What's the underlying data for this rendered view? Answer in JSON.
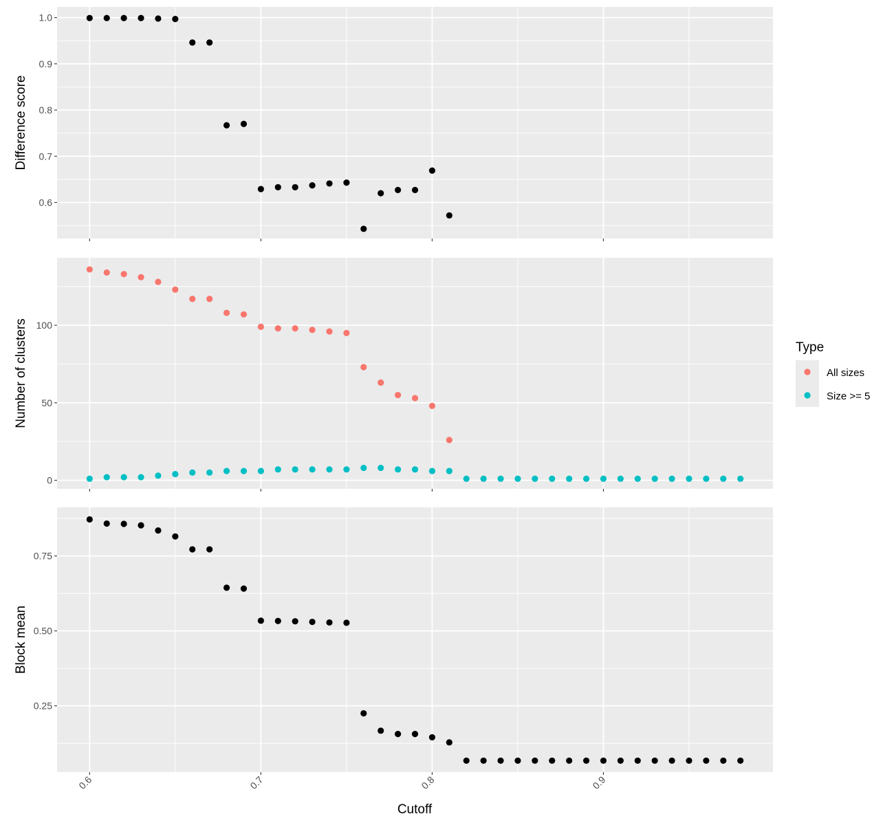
{
  "chart_data": {
    "type": "scatter",
    "xlabel": "Cutoff",
    "xlim": [
      0.581,
      0.999
    ],
    "x_ticks": [
      0.6,
      0.7,
      0.8,
      0.9
    ],
    "x_tick_labels": [
      "0.6",
      "0.7",
      "0.8",
      "0.9"
    ],
    "grid": true,
    "legend": {
      "title": "Type",
      "position": "right",
      "entries": [
        {
          "label": "All sizes",
          "color": "#F8766D"
        },
        {
          "label": "Size >= 5",
          "color": "#00BFC4"
        }
      ]
    },
    "panels": [
      {
        "id": "difference",
        "ylabel": "Difference score",
        "ylim": [
          0.5219,
          1.0232
        ],
        "y_ticks": [
          0.6,
          0.7,
          0.8,
          0.9,
          1.0
        ],
        "y_tick_labels": [
          "0.6",
          "0.7",
          "0.8",
          "0.9",
          "1.0"
        ],
        "series": [
          {
            "color": "#000000",
            "x": [
              0.6,
              0.61,
              0.62,
              0.63,
              0.64,
              0.65,
              0.66,
              0.67,
              0.68,
              0.69,
              0.7,
              0.71,
              0.72,
              0.73,
              0.74,
              0.75,
              0.76,
              0.77,
              0.78,
              0.79,
              0.8,
              0.81
            ],
            "y": [
              0.999,
              0.999,
              0.999,
              0.999,
              0.998,
              0.997,
              0.946,
              0.946,
              0.767,
              0.77,
              0.629,
              0.633,
              0.633,
              0.637,
              0.641,
              0.643,
              0.543,
              0.62,
              0.627,
              0.627,
              0.669,
              0.572
            ]
          }
        ]
      },
      {
        "id": "clusters",
        "ylabel": "Number of clusters",
        "ylim": [
          -5.5,
          143.5
        ],
        "y_ticks": [
          0,
          50,
          100
        ],
        "y_tick_labels": [
          "0",
          "50",
          "100"
        ],
        "series": [
          {
            "name": "All sizes",
            "color": "#F8766D",
            "x": [
              0.6,
              0.61,
              0.62,
              0.63,
              0.64,
              0.65,
              0.66,
              0.67,
              0.68,
              0.69,
              0.7,
              0.71,
              0.72,
              0.73,
              0.74,
              0.75,
              0.76,
              0.77,
              0.78,
              0.79,
              0.8,
              0.81
            ],
            "y": [
              136,
              134,
              133,
              131,
              128,
              123,
              117,
              117,
              108,
              107,
              99,
              98,
              98,
              97,
              96,
              95,
              73,
              63,
              55,
              53,
              48,
              26
            ]
          },
          {
            "name": "Size >= 5",
            "color": "#00BFC4",
            "x": [
              0.6,
              0.61,
              0.62,
              0.63,
              0.64,
              0.65,
              0.66,
              0.67,
              0.68,
              0.69,
              0.7,
              0.71,
              0.72,
              0.73,
              0.74,
              0.75,
              0.76,
              0.77,
              0.78,
              0.79,
              0.8,
              0.81,
              0.82,
              0.83,
              0.84,
              0.85,
              0.86,
              0.87,
              0.88,
              0.89,
              0.9,
              0.91,
              0.92,
              0.93,
              0.94,
              0.95,
              0.96,
              0.97,
              0.98
            ],
            "y": [
              1,
              2,
              2,
              2,
              3,
              4,
              5,
              5,
              6,
              6,
              6,
              7,
              7,
              7,
              7,
              7,
              8,
              8,
              7,
              7,
              6,
              6,
              1,
              1,
              1,
              1,
              1,
              1,
              1,
              1,
              1,
              1,
              1,
              1,
              1,
              1,
              1,
              1,
              1
            ]
          }
        ]
      },
      {
        "id": "block",
        "ylabel": "Block mean",
        "ylim": [
          0.029,
          0.912
        ],
        "y_ticks": [
          0.25,
          0.5,
          0.75
        ],
        "y_tick_labels": [
          "0.25",
          "0.50",
          "0.75"
        ],
        "series": [
          {
            "color": "#000000",
            "x": [
              0.6,
              0.61,
              0.62,
              0.63,
              0.64,
              0.65,
              0.66,
              0.67,
              0.68,
              0.69,
              0.7,
              0.71,
              0.72,
              0.73,
              0.74,
              0.75,
              0.76,
              0.77,
              0.78,
              0.79,
              0.8,
              0.81,
              0.82,
              0.83,
              0.84,
              0.85,
              0.86,
              0.87,
              0.88,
              0.89,
              0.9,
              0.91,
              0.92,
              0.93,
              0.94,
              0.95,
              0.96,
              0.97,
              0.98
            ],
            "y": [
              0.872,
              0.858,
              0.857,
              0.852,
              0.835,
              0.815,
              0.772,
              0.772,
              0.644,
              0.641,
              0.534,
              0.533,
              0.532,
              0.53,
              0.528,
              0.527,
              0.225,
              0.167,
              0.156,
              0.156,
              0.145,
              0.128,
              0.067,
              0.067,
              0.067,
              0.067,
              0.067,
              0.067,
              0.067,
              0.067,
              0.067,
              0.067,
              0.067,
              0.067,
              0.067,
              0.067,
              0.067,
              0.067,
              0.067
            ]
          }
        ]
      }
    ]
  }
}
